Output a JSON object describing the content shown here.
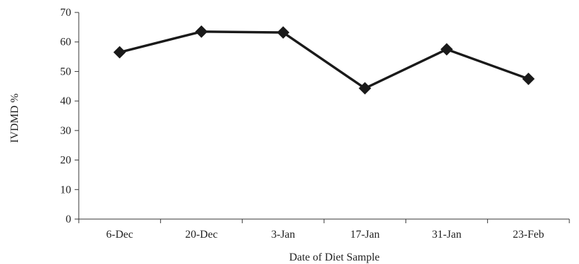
{
  "chart_data": {
    "type": "line",
    "title": "",
    "xlabel": "Date of Diet Sample",
    "ylabel": "IVDMD %",
    "categories": [
      "6-Dec",
      "20-Dec",
      "3-Jan",
      "17-Jan",
      "31-Jan",
      "23-Feb"
    ],
    "series": [
      {
        "values": [
          56.5,
          63.5,
          63.2,
          44.3,
          57.5,
          47.5
        ]
      }
    ],
    "ylim": [
      0,
      70
    ],
    "yticks": [
      0,
      10,
      20,
      30,
      40,
      50,
      60,
      70
    ],
    "grid": false,
    "legend": "none",
    "marker": "diamond",
    "line_color": "#1a1a1a"
  }
}
